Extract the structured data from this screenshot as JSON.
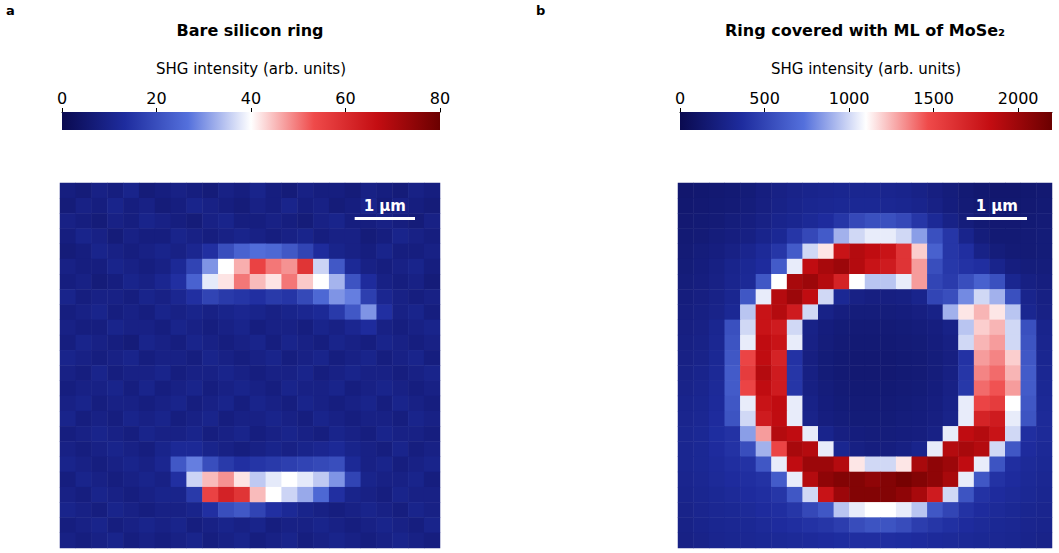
{
  "chart_data": [
    {
      "type": "heatmap",
      "panel": "a",
      "title": "Bare silicon ring",
      "tick_labels": false,
      "xlim": [
        0,
        6.3
      ],
      "ylim": [
        0,
        6.1
      ],
      "scale_bar": {
        "label": "1 µm",
        "length": 1
      },
      "colorbar": {
        "label": "SHG intensity (arb. units)",
        "range": [
          0,
          80
        ],
        "ticks": [
          0,
          20,
          40,
          60,
          80
        ],
        "colors": [
          "#0a0a50",
          "#1e2c9e",
          "#5470dc",
          "#ffffff",
          "#ef4a4a",
          "#c40d12",
          "#6b0000"
        ]
      },
      "cells": [
        [
          8,
          7,
          9,
          8,
          10,
          7,
          8,
          9,
          8,
          7,
          9,
          8,
          10,
          8,
          7,
          9,
          8,
          8,
          7,
          9,
          8,
          7,
          9,
          8
        ],
        [
          7,
          9,
          8,
          10,
          8,
          9,
          7,
          8,
          10,
          9,
          8,
          7,
          9,
          8,
          10,
          8,
          9,
          7,
          8,
          10,
          7,
          9,
          8,
          7
        ],
        [
          9,
          8,
          7,
          9,
          8,
          10,
          9,
          8,
          7,
          9,
          10,
          8,
          8,
          9,
          8,
          7,
          9,
          10,
          8,
          8,
          9,
          8,
          7,
          9
        ],
        [
          8,
          10,
          9,
          7,
          9,
          8,
          8,
          10,
          9,
          8,
          9,
          10,
          9,
          8,
          9,
          10,
          8,
          9,
          9,
          7,
          8,
          10,
          9,
          8
        ],
        [
          7,
          8,
          10,
          9,
          8,
          9,
          10,
          9,
          11,
          14,
          20,
          24,
          26,
          25,
          22,
          18,
          13,
          10,
          9,
          8,
          10,
          8,
          8,
          9
        ],
        [
          9,
          8,
          8,
          10,
          9,
          8,
          9,
          12,
          18,
          30,
          40,
          46,
          55,
          50,
          48,
          58,
          36,
          22,
          12,
          9,
          8,
          9,
          10,
          8
        ],
        [
          8,
          9,
          7,
          8,
          10,
          9,
          11,
          14,
          24,
          38,
          42,
          50,
          45,
          42,
          50,
          44,
          40,
          33,
          21,
          13,
          9,
          8,
          9,
          7
        ],
        [
          10,
          8,
          9,
          9,
          8,
          10,
          9,
          11,
          14,
          18,
          16,
          15,
          14,
          16,
          15,
          19,
          25,
          30,
          28,
          17,
          11,
          9,
          8,
          9
        ],
        [
          8,
          9,
          10,
          8,
          9,
          8,
          10,
          9,
          10,
          9,
          10,
          11,
          10,
          9,
          10,
          11,
          12,
          16,
          22,
          30,
          14,
          9,
          10,
          8
        ],
        [
          9,
          8,
          8,
          10,
          9,
          9,
          8,
          10,
          9,
          8,
          9,
          10,
          8,
          9,
          9,
          8,
          10,
          9,
          11,
          13,
          9,
          8,
          9,
          10
        ],
        [
          8,
          10,
          9,
          8,
          7,
          10,
          9,
          8,
          10,
          9,
          8,
          9,
          10,
          8,
          10,
          9,
          8,
          10,
          9,
          8,
          10,
          9,
          8,
          9
        ],
        [
          10,
          9,
          8,
          9,
          10,
          8,
          9,
          9,
          8,
          10,
          9,
          8,
          9,
          10,
          8,
          9,
          10,
          8,
          9,
          10,
          8,
          9,
          10,
          8
        ],
        [
          9,
          8,
          10,
          8,
          9,
          9,
          10,
          8,
          9,
          9,
          10,
          9,
          8,
          9,
          9,
          10,
          8,
          9,
          10,
          9,
          9,
          8,
          9,
          10
        ],
        [
          8,
          9,
          9,
          10,
          8,
          10,
          8,
          9,
          10,
          8,
          9,
          10,
          9,
          8,
          10,
          9,
          9,
          10,
          8,
          9,
          10,
          9,
          8,
          9
        ],
        [
          9,
          10,
          8,
          9,
          9,
          8,
          9,
          10,
          8,
          9,
          10,
          8,
          10,
          9,
          8,
          10,
          9,
          8,
          9,
          10,
          8,
          10,
          9,
          8
        ],
        [
          10,
          8,
          9,
          8,
          10,
          9,
          10,
          8,
          9,
          10,
          8,
          9,
          9,
          10,
          9,
          8,
          10,
          9,
          8,
          9,
          9,
          8,
          10,
          9
        ],
        [
          8,
          9,
          10,
          9,
          8,
          10,
          9,
          9,
          10,
          8,
          9,
          10,
          8,
          9,
          10,
          9,
          8,
          10,
          9,
          8,
          10,
          9,
          9,
          8
        ],
        [
          9,
          8,
          9,
          10,
          9,
          8,
          10,
          12,
          12,
          10,
          9,
          8,
          9,
          10,
          9,
          10,
          11,
          12,
          10,
          9,
          8,
          10,
          8,
          9
        ],
        [
          10,
          9,
          8,
          9,
          10,
          9,
          11,
          22,
          28,
          20,
          16,
          14,
          15,
          16,
          17,
          18,
          19,
          20,
          12,
          9,
          10,
          8,
          9,
          10
        ],
        [
          8,
          10,
          9,
          8,
          9,
          10,
          9,
          14,
          36,
          45,
          48,
          42,
          35,
          38,
          40,
          38,
          35,
          30,
          18,
          10,
          9,
          9,
          10,
          8
        ],
        [
          9,
          8,
          10,
          9,
          8,
          9,
          10,
          10,
          16,
          55,
          62,
          58,
          45,
          40,
          36,
          32,
          25,
          14,
          10,
          9,
          8,
          10,
          9,
          9
        ],
        [
          10,
          9,
          8,
          10,
          9,
          8,
          9,
          9,
          10,
          14,
          20,
          22,
          18,
          14,
          12,
          10,
          9,
          8,
          9,
          10,
          9,
          8,
          10,
          9
        ],
        [
          8,
          9,
          10,
          8,
          9,
          10,
          9,
          10,
          8,
          9,
          10,
          9,
          10,
          8,
          9,
          9,
          10,
          9,
          8,
          9,
          10,
          9,
          8,
          10
        ],
        [
          9,
          8,
          9,
          10,
          8,
          9,
          8,
          9,
          10,
          8,
          9,
          10,
          8,
          9,
          10,
          8,
          9,
          10,
          9,
          8,
          9,
          10,
          9,
          8
        ]
      ]
    },
    {
      "type": "heatmap",
      "panel": "b",
      "title": "Ring covered with ML of MoSe₂",
      "tick_labels": false,
      "xlim": [
        0,
        6.2
      ],
      "ylim": [
        0,
        6.1
      ],
      "scale_bar": {
        "label": "1 µm",
        "length": 1
      },
      "colorbar": {
        "label": "SHG intensity (arb. units)",
        "range": [
          0,
          2200
        ],
        "ticks": [
          0,
          500,
          1000,
          1500,
          2000
        ],
        "colors": [
          "#0a0a50",
          "#1e2c9e",
          "#5470dc",
          "#ffffff",
          "#ef4a4a",
          "#c40d12",
          "#6b0000"
        ]
      },
      "cells": [
        [
          140,
          150,
          160,
          170,
          190,
          220,
          250,
          270,
          280,
          290,
          300,
          300,
          300,
          290,
          280,
          260,
          230,
          200,
          170,
          150,
          140,
          140,
          150,
          160
        ],
        [
          150,
          160,
          170,
          180,
          200,
          230,
          260,
          280,
          300,
          310,
          320,
          320,
          320,
          310,
          300,
          280,
          250,
          210,
          180,
          160,
          150,
          150,
          160,
          170
        ],
        [
          160,
          170,
          180,
          200,
          220,
          250,
          280,
          300,
          330,
          360,
          420,
          520,
          560,
          560,
          520,
          420,
          330,
          260,
          200,
          170,
          160,
          160,
          170,
          180
        ],
        [
          170,
          180,
          200,
          220,
          240,
          280,
          320,
          420,
          520,
          620,
          900,
          1000,
          1050,
          1050,
          1000,
          850,
          560,
          420,
          280,
          200,
          170,
          170,
          180,
          190
        ],
        [
          180,
          200,
          220,
          250,
          290,
          340,
          420,
          620,
          1000,
          1150,
          1800,
          1900,
          1850,
          1800,
          1600,
          1200,
          650,
          420,
          380,
          260,
          200,
          180,
          180,
          190
        ],
        [
          190,
          210,
          240,
          280,
          320,
          360,
          620,
          1050,
          1850,
          1950,
          2000,
          1900,
          1800,
          1750,
          1600,
          1300,
          550,
          430,
          400,
          380,
          280,
          220,
          200,
          200
        ],
        [
          200,
          220,
          250,
          290,
          330,
          600,
          1100,
          1950,
          2000,
          1900,
          1700,
          1100,
          950,
          950,
          1050,
          1300,
          500,
          450,
          550,
          650,
          560,
          300,
          240,
          220
        ],
        [
          210,
          230,
          260,
          300,
          600,
          1050,
          1900,
          2000,
          1850,
          1000,
          320,
          250,
          230,
          230,
          240,
          280,
          500,
          550,
          800,
          1000,
          900,
          560,
          280,
          240
        ],
        [
          220,
          240,
          270,
          320,
          950,
          1800,
          1900,
          1750,
          1000,
          260,
          220,
          200,
          200,
          200,
          210,
          230,
          260,
          900,
          1150,
          1250,
          1150,
          950,
          300,
          250
        ],
        [
          230,
          250,
          300,
          560,
          1000,
          1800,
          1750,
          1000,
          260,
          210,
          190,
          180,
          180,
          180,
          190,
          200,
          220,
          260,
          950,
          1200,
          1250,
          1000,
          560,
          280
        ],
        [
          240,
          260,
          310,
          580,
          1050,
          1850,
          1800,
          1050,
          250,
          200,
          180,
          170,
          170,
          170,
          180,
          190,
          210,
          240,
          1000,
          1250,
          1300,
          1000,
          580,
          290
        ],
        [
          250,
          270,
          320,
          600,
          1500,
          1850,
          1700,
          400,
          230,
          190,
          170,
          160,
          160,
          160,
          170,
          180,
          200,
          230,
          400,
          1300,
          1350,
          1200,
          600,
          300
        ],
        [
          260,
          280,
          330,
          620,
          1550,
          1900,
          1750,
          420,
          240,
          190,
          170,
          160,
          160,
          160,
          170,
          180,
          200,
          240,
          420,
          1350,
          1400,
          1250,
          620,
          310
        ],
        [
          270,
          290,
          340,
          620,
          1500,
          1850,
          1750,
          420,
          240,
          200,
          180,
          170,
          170,
          170,
          180,
          190,
          210,
          250,
          430,
          1400,
          1450,
          1300,
          620,
          320
        ],
        [
          280,
          300,
          350,
          600,
          1050,
          1800,
          1850,
          1050,
          260,
          210,
          190,
          180,
          180,
          180,
          190,
          200,
          220,
          260,
          1050,
          1500,
          1550,
          1100,
          600,
          330
        ],
        [
          290,
          310,
          360,
          580,
          1000,
          1750,
          1850,
          1050,
          270,
          220,
          200,
          190,
          190,
          190,
          200,
          210,
          230,
          270,
          1050,
          1700,
          1750,
          1050,
          580,
          340
        ],
        [
          300,
          320,
          370,
          400,
          850,
          1300,
          1900,
          1850,
          1050,
          280,
          230,
          210,
          200,
          200,
          210,
          220,
          250,
          1050,
          1850,
          1900,
          1800,
          1000,
          380,
          340
        ],
        [
          300,
          320,
          360,
          400,
          550,
          900,
          1500,
          1950,
          1900,
          1050,
          300,
          240,
          220,
          220,
          240,
          280,
          1050,
          1900,
          1950,
          1900,
          1000,
          600,
          360,
          330
        ],
        [
          300,
          320,
          350,
          380,
          400,
          600,
          1050,
          1850,
          2000,
          2000,
          1900,
          1150,
          1000,
          1000,
          1150,
          1950,
          2050,
          2000,
          1850,
          1050,
          580,
          380,
          340,
          320
        ],
        [
          290,
          310,
          340,
          360,
          380,
          400,
          620,
          1050,
          1900,
          2050,
          2100,
          2100,
          2050,
          2100,
          2150,
          2100,
          2050,
          1950,
          1050,
          600,
          400,
          360,
          330,
          310
        ],
        [
          280,
          300,
          320,
          340,
          360,
          380,
          420,
          600,
          1000,
          1800,
          2000,
          2100,
          2100,
          2100,
          2050,
          1950,
          1750,
          1000,
          580,
          400,
          360,
          340,
          320,
          300
        ],
        [
          270,
          290,
          310,
          320,
          340,
          360,
          380,
          420,
          520,
          600,
          950,
          1050,
          1100,
          1100,
          1050,
          950,
          600,
          500,
          400,
          360,
          340,
          320,
          300,
          290
        ],
        [
          260,
          280,
          300,
          310,
          320,
          340,
          360,
          380,
          400,
          420,
          460,
          540,
          580,
          580,
          540,
          460,
          420,
          390,
          360,
          340,
          320,
          310,
          290,
          280
        ],
        [
          250,
          270,
          290,
          300,
          310,
          320,
          330,
          340,
          350,
          360,
          370,
          380,
          380,
          380,
          370,
          360,
          350,
          340,
          330,
          320,
          310,
          300,
          280,
          270
        ]
      ]
    }
  ]
}
